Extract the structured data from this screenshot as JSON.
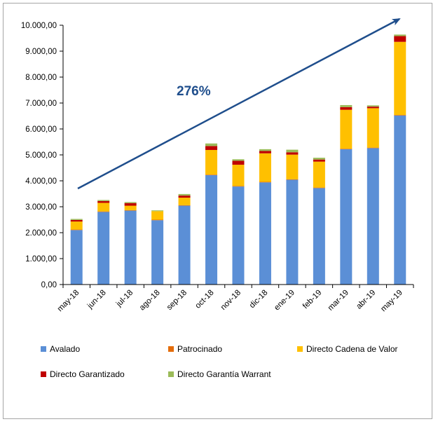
{
  "chart_data": {
    "type": "bar",
    "stacked": true,
    "categories": [
      "may-18",
      "jun-18",
      "jul-18",
      "ago-18",
      "sep-18",
      "oct-18",
      "nov-18",
      "dic-18",
      "ene-19",
      "feb-19",
      "mar-19",
      "abr-19",
      "may-19"
    ],
    "series": [
      {
        "name": "Avalado",
        "color": "#5b8fd6",
        "values": [
          2100,
          2800,
          2850,
          2480,
          3040,
          4220,
          3780,
          3940,
          4040,
          3720,
          5220,
          5260,
          6520
        ]
      },
      {
        "name": "Patrocinado",
        "color": "#e46c0a",
        "values": [
          20,
          20,
          20,
          20,
          20,
          20,
          20,
          20,
          20,
          20,
          20,
          20,
          20
        ]
      },
      {
        "name": "Directo Cadena de Valor",
        "color": "#ffc000",
        "values": [
          310,
          330,
          170,
          330,
          290,
          950,
          820,
          1100,
          950,
          1000,
          1500,
          1520,
          2820
        ]
      },
      {
        "name": "Directo Garantizado",
        "color": "#c00000",
        "values": [
          60,
          70,
          100,
          0,
          80,
          150,
          150,
          90,
          90,
          80,
          100,
          60,
          220
        ]
      },
      {
        "name": "Directo Garantía Warrant",
        "color": "#9bbb59",
        "values": [
          40,
          40,
          40,
          30,
          60,
          100,
          60,
          70,
          100,
          70,
          80,
          50,
          60
        ]
      }
    ],
    "ylim": [
      0,
      10000
    ],
    "yticks": [
      0,
      1000,
      2000,
      3000,
      4000,
      5000,
      6000,
      7000,
      8000,
      9000,
      10000
    ],
    "ytick_labels": [
      "0,00",
      "1.000,00",
      "2.000,00",
      "3.000,00",
      "4.000,00",
      "5.000,00",
      "6.000,00",
      "7.000,00",
      "8.000,00",
      "9.000,00",
      "10.000,00"
    ],
    "grid": false,
    "legend_position": "bottom",
    "annotation": {
      "text": "276%",
      "arrow_color": "#1f4e8c"
    }
  }
}
